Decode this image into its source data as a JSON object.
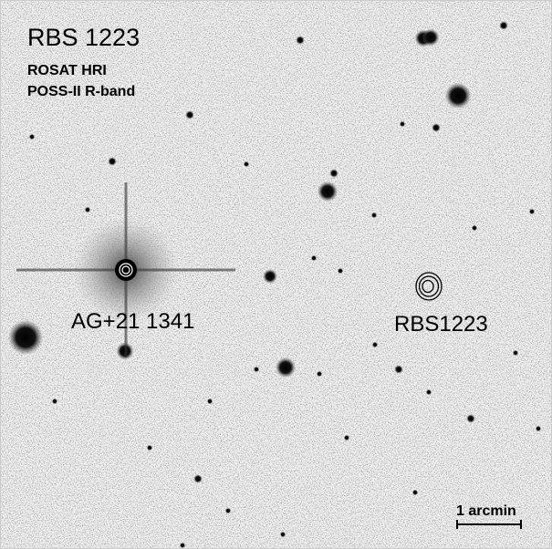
{
  "title": "RBS 1223",
  "subtitle_lines": [
    "ROSAT HRI",
    "POSS-II R-band"
  ],
  "labels": {
    "star": "AG+21 1341",
    "source": "RBS1223"
  },
  "scale_bar": "1 arcmin"
}
